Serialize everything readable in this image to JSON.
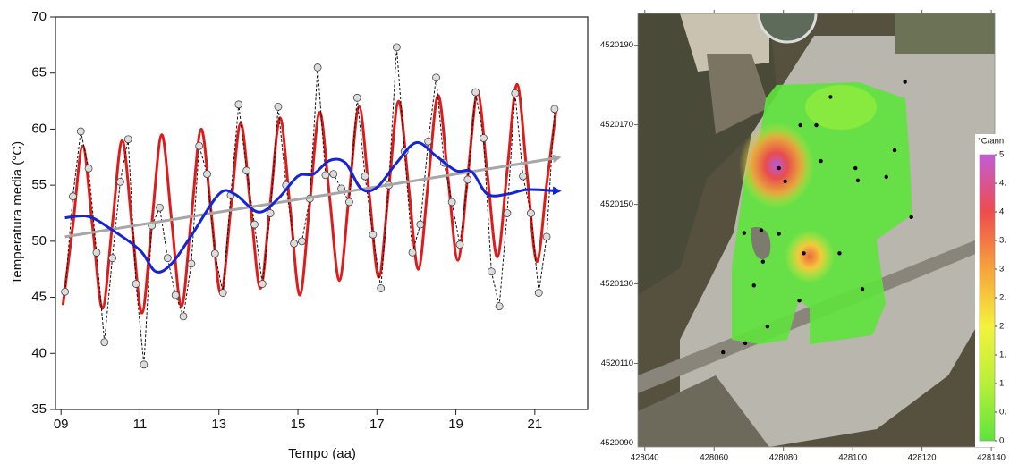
{
  "chart_data": [
    {
      "type": "line",
      "xlabel": "Tempo (aa)",
      "ylabel": "Temperatura media (°C)",
      "xlim": [
        8.86,
        22.34
      ],
      "ylim": [
        35,
        70
      ],
      "xticks": [
        {
          "value": 9,
          "label": "09"
        },
        11,
        13,
        15,
        17,
        19,
        21
      ],
      "yticks": [
        35,
        40,
        45,
        50,
        55,
        60,
        65,
        70
      ],
      "series": [
        {
          "color": "#dd1c1c",
          "smooth": true,
          "x": [
            9.05,
            9.3,
            9.55,
            9.8,
            10.05,
            10.3,
            10.55,
            10.8,
            11.05,
            11.3,
            11.55,
            11.8,
            12.05,
            12.3,
            12.55,
            12.8,
            13.05,
            13.3,
            13.55,
            13.8,
            14.05,
            14.3,
            14.55,
            14.8,
            15.05,
            15.3,
            15.55,
            15.8,
            16.05,
            16.3,
            16.55,
            16.8,
            17.05,
            17.3,
            17.55,
            17.8,
            18.05,
            18.3,
            18.55,
            18.8,
            19.05,
            19.3,
            19.55,
            19.8,
            20.05,
            20.3,
            20.55,
            20.8,
            21.05,
            21.3,
            21.55
          ],
          "values": [
            44.3,
            51.4,
            58.5,
            51.3,
            44.0,
            51.5,
            59.0,
            51.3,
            43.6,
            51.6,
            59.5,
            51.9,
            44.2,
            52.1,
            60.0,
            52.7,
            45.3,
            52.9,
            60.5,
            53.2,
            45.8,
            53.4,
            61.0,
            53.1,
            45.2,
            53.4,
            61.5,
            54.0,
            46.5,
            54.3,
            62.0,
            54.4,
            46.8,
            54.7,
            62.5,
            55.0,
            47.5,
            55.3,
            63.0,
            55.7,
            48.3,
            55.8,
            63.2,
            55.9,
            48.6,
            56.3,
            64.0,
            56.1,
            48.2,
            55.1,
            62.0
          ]
        },
        {
          "color": "#111111",
          "line_style": "dashed",
          "markers": true,
          "x": [
            9.1,
            9.3,
            9.5,
            9.7,
            9.9,
            10.1,
            10.3,
            10.5,
            10.7,
            10.9,
            11.1,
            11.3,
            11.5,
            11.7,
            11.9,
            12.1,
            12.3,
            12.5,
            12.7,
            12.9,
            13.1,
            13.3,
            13.5,
            13.7,
            13.9,
            14.1,
            14.3,
            14.5,
            14.7,
            14.9,
            15.1,
            15.3,
            15.5,
            15.7,
            15.9,
            16.1,
            16.3,
            16.5,
            16.7,
            16.9,
            17.1,
            17.3,
            17.5,
            17.7,
            17.9,
            18.1,
            18.3,
            18.5,
            18.7,
            18.9,
            19.1,
            19.3,
            19.5,
            19.7,
            19.9,
            20.1,
            20.3,
            20.5,
            20.7,
            20.9,
            21.1,
            21.3,
            21.5
          ],
          "values": [
            45.5,
            54.0,
            59.8,
            56.5,
            49.0,
            41.0,
            48.5,
            55.3,
            59.1,
            46.2,
            39.0,
            51.4,
            53.0,
            48.5,
            45.2,
            43.3,
            48.0,
            58.5,
            56.0,
            48.9,
            45.4,
            54.1,
            62.2,
            56.3,
            51.5,
            46.2,
            52.5,
            62.0,
            55.0,
            49.8,
            50.0,
            53.8,
            65.5,
            55.9,
            56.0,
            54.7,
            53.5,
            62.8,
            55.8,
            50.6,
            45.8,
            55.0,
            67.3,
            58.0,
            49.0,
            51.5,
            58.9,
            64.6,
            57.0,
            53.5,
            49.7,
            55.5,
            63.3,
            59.2,
            47.3,
            44.2,
            52.5,
            63.2,
            55.8,
            52.5,
            45.4,
            50.4,
            61.8
          ]
        },
        {
          "color": "#a6a6a6",
          "arrow": true,
          "x": [
            9.1,
            21.5
          ],
          "values": [
            50.4,
            57.4
          ]
        },
        {
          "color": "#1424d6",
          "smooth": true,
          "arrow": true,
          "x": [
            9.1,
            9.7,
            10.3,
            11.0,
            11.4,
            11.8,
            12.3,
            13.0,
            13.4,
            14.0,
            14.5,
            15.0,
            15.4,
            15.8,
            16.2,
            16.6,
            17.0,
            17.5,
            18.0,
            18.5,
            19.0,
            19.4,
            19.8,
            20.3,
            20.8,
            21.5
          ],
          "values": [
            52.1,
            52.2,
            51.0,
            49.2,
            47.3,
            48.0,
            50.5,
            54.2,
            54.2,
            52.6,
            53.8,
            55.8,
            56.0,
            57.2,
            57.0,
            54.7,
            54.8,
            57.0,
            58.8,
            57.6,
            56.3,
            56.2,
            54.2,
            54.2,
            54.6,
            54.5
          ]
        }
      ]
    },
    {
      "type": "map",
      "xlim": [
        428038,
        428141
      ],
      "ylim": [
        4520089,
        4520198
      ],
      "xticks": [
        428040,
        428060,
        428080,
        428100,
        428120,
        428140
      ],
      "yticks": [
        4520090,
        4520110,
        4520130,
        4520150,
        4520170,
        4520190
      ],
      "points": {
        "color": "#000000",
        "x": [
          428093.6,
          428115.1,
          428084.9,
          428089.5,
          428078.7,
          428090.8,
          428100.8,
          428101.5,
          428109.7,
          428112.1,
          428080.5,
          428068.7,
          428073.6,
          428078.7,
          428074.1,
          428085.9,
          428096.2,
          428102.8,
          428071.5,
          428084.6,
          428075.4,
          428069.0,
          428062.6,
          428116.9
        ],
        "y": [
          4520177.0,
          4520180.8,
          4520169.9,
          4520169.9,
          4520159.1,
          4520160.9,
          4520159.1,
          4520156.0,
          4520156.9,
          4520163.6,
          4520155.8,
          4520142.8,
          4520143.5,
          4520142.6,
          4520135.6,
          4520137.7,
          4520137.7,
          4520128.7,
          4520129.6,
          4520125.8,
          4520119.3,
          4520115.1,
          4520112.8,
          4520146.8
        ]
      },
      "colorbar": {
        "title": "°C/ann",
        "lim": [
          0,
          5
        ],
        "colors": [
          "#5ee33c",
          "#b8f03a",
          "#f4f23c",
          "#f7a33c",
          "#ee4c4c",
          "#c35cd6"
        ],
        "ticks": [
          0,
          {
            "value": 0.5,
            "label": "0."
          },
          1,
          {
            "value": 1.5,
            "label": "1."
          },
          2,
          {
            "value": 2.5,
            "label": "2."
          },
          3,
          {
            "value": 3.5,
            "label": "3."
          },
          4,
          {
            "value": 4.5,
            "label": "4."
          },
          5
        ]
      }
    }
  ]
}
